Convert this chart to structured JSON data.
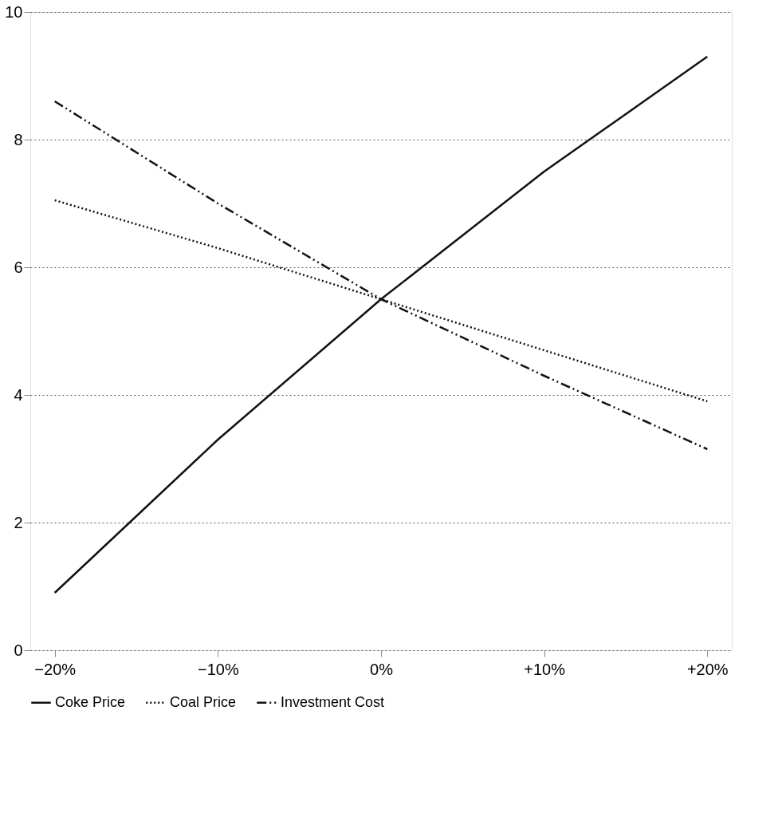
{
  "chart_data": {
    "type": "line",
    "categories": [
      "−20%",
      "−10%",
      "0%",
      "+10%",
      "+20%"
    ],
    "series": [
      {
        "name": "Coke Price",
        "color": "#111111",
        "line_style": "solid",
        "values": [
          0.9,
          3.3,
          5.5,
          7.5,
          9.3
        ]
      },
      {
        "name": "Coal Price",
        "color": "#111111",
        "line_style": "dotted",
        "values": [
          7.05,
          6.3,
          5.5,
          4.7,
          3.9
        ]
      },
      {
        "name": "Investment Cost",
        "color": "#111111",
        "line_style": "dashed",
        "values": [
          8.6,
          7.0,
          5.5,
          4.3,
          3.15
        ]
      }
    ],
    "ylim": [
      0,
      10
    ],
    "yticks": [
      0,
      2,
      4,
      6,
      8,
      10
    ],
    "grid": "y",
    "legend": "bottom",
    "marker": "none"
  }
}
